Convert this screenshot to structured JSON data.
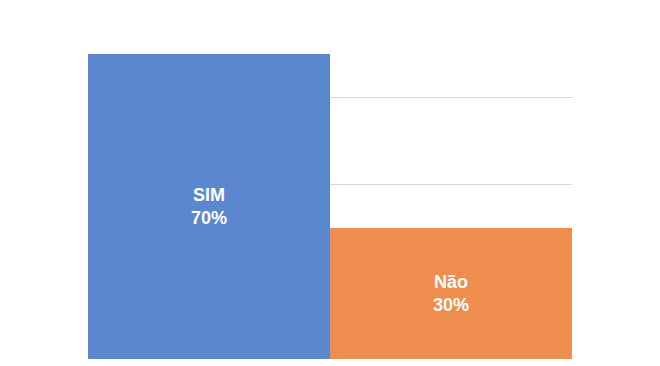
{
  "chart_data": {
    "type": "bar",
    "categories": [
      "SIM",
      "Não"
    ],
    "values": [
      70,
      30
    ],
    "value_labels": [
      "70%",
      "30%"
    ],
    "data_labels": true,
    "colors": [
      "#5b87cf",
      "#ef8d4f"
    ],
    "ylim": [
      0,
      80
    ],
    "yticks": [
      0,
      20,
      40,
      60,
      80
    ],
    "grid": true,
    "tick_labels": false
  }
}
